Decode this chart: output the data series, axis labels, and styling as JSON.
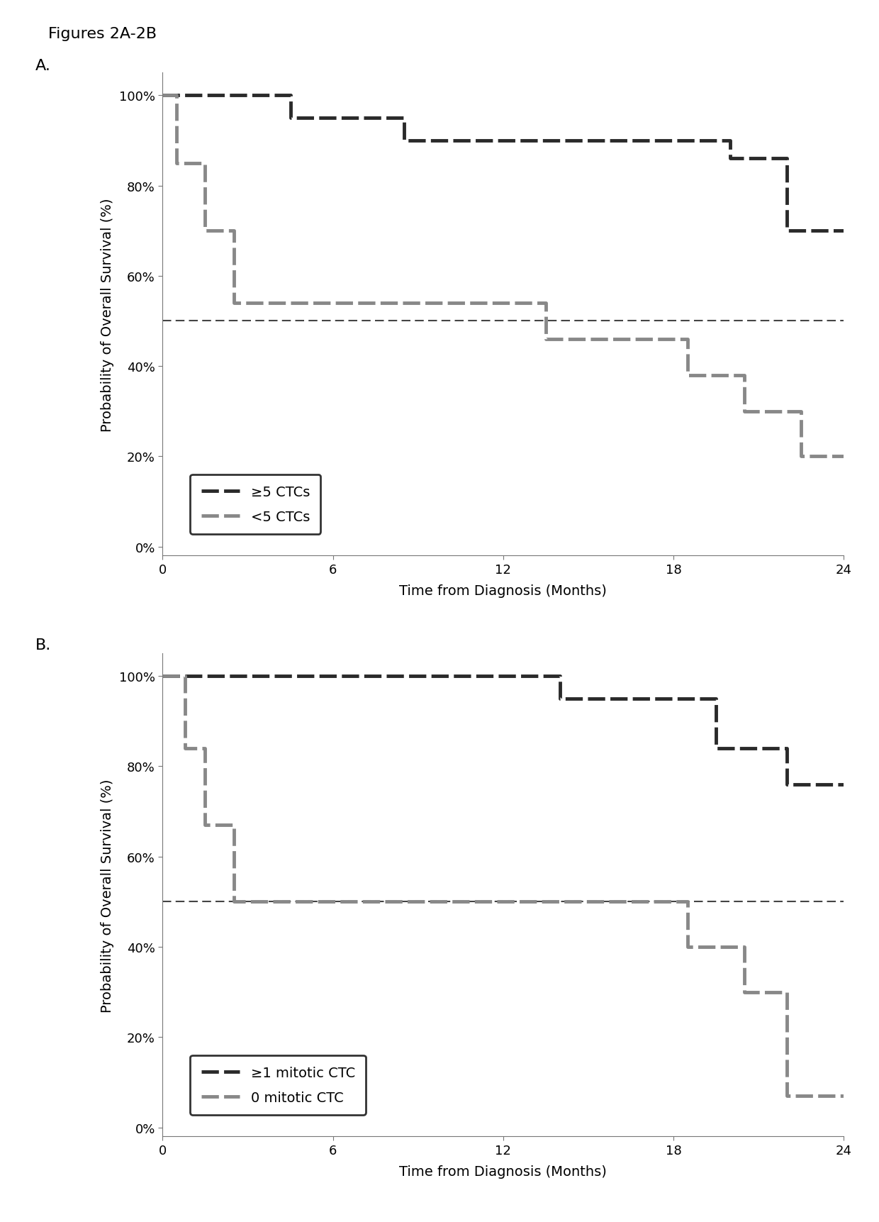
{
  "figure_title": "Figures 2A-2B",
  "panel_A_label": "A.",
  "panel_B_label": "B.",
  "xlabel": "Time from Diagnosis (Months)",
  "ylabel": "Probability of Overall Survival (%)",
  "xlim": [
    0,
    24
  ],
  "ylim": [
    -2,
    105
  ],
  "xticks": [
    0,
    6,
    12,
    18,
    24
  ],
  "yticks": [
    0,
    20,
    40,
    60,
    80,
    100
  ],
  "ytick_labels": [
    "0%",
    "20%",
    "40%",
    "60%",
    "80%",
    "100%"
  ],
  "median_line_y": 50,
  "background_color": "#ffffff",
  "panel_A": {
    "series1_label": "≥5 CTCs",
    "series2_label": "<5 CTCs",
    "series1_color": "#2a2a2a",
    "series2_color": "#888888",
    "series1_x": [
      0,
      1.0,
      4.5,
      8.5,
      18.5,
      20.0,
      22.0,
      24
    ],
    "series1_y": [
      100,
      100,
      95,
      90,
      90,
      86,
      70,
      70
    ],
    "series2_x": [
      0,
      0.5,
      1.5,
      2.5,
      4.0,
      12.5,
      13.5,
      18.5,
      20.5,
      22.5,
      24
    ],
    "series2_y": [
      100,
      85,
      70,
      54,
      54,
      54,
      46,
      38,
      30,
      20,
      20
    ]
  },
  "panel_B": {
    "series1_label": "≥1 mitotic CTC",
    "series2_label": "0 mitotic CTC",
    "series1_color": "#2a2a2a",
    "series2_color": "#888888",
    "series1_x": [
      0,
      12.0,
      14.0,
      19.5,
      22.0,
      24
    ],
    "series1_y": [
      100,
      100,
      95,
      84,
      76,
      76
    ],
    "series2_x": [
      0,
      0.8,
      1.5,
      2.5,
      3.5,
      13.5,
      18.5,
      20.5,
      22.0,
      24
    ],
    "series2_y": [
      100,
      84,
      67,
      50,
      50,
      50,
      40,
      30,
      7,
      7
    ]
  }
}
